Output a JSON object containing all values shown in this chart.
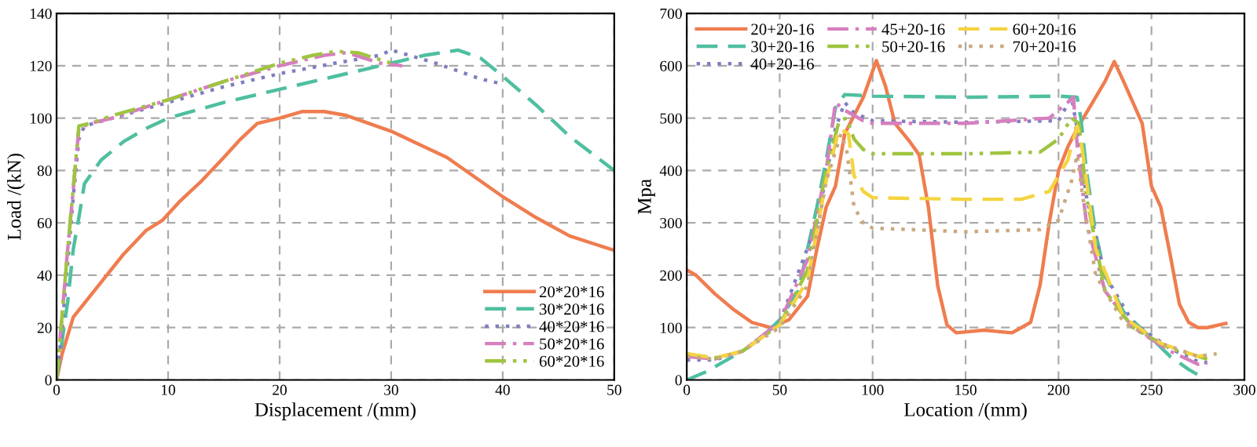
{
  "chart_data": [
    {
      "type": "line",
      "xlabel": "Displacement /(mm)",
      "ylabel": "Load /(kN)",
      "xlim": [
        0,
        50
      ],
      "ylim": [
        0,
        140
      ],
      "xticks": [
        0,
        10,
        20,
        30,
        40,
        50
      ],
      "yticks": [
        0,
        20,
        40,
        60,
        80,
        100,
        120,
        140
      ],
      "grid": true,
      "legend": "lower right",
      "series": [
        {
          "name": "20*20*16",
          "color": "#ef7d4f",
          "line_style": "solid",
          "x": [
            0,
            0.5,
            1.5,
            3,
            4.5,
            6,
            8,
            9.5,
            11,
            13,
            15,
            16.5,
            18,
            20,
            22,
            24,
            26,
            28,
            30,
            32,
            35,
            38,
            40,
            43,
            46,
            50
          ],
          "values": [
            0,
            10,
            24,
            32,
            40,
            48,
            57,
            61,
            68,
            76,
            85,
            92,
            98,
            100,
            102.5,
            102.5,
            101,
            98,
            95,
            91,
            85,
            76,
            70,
            62,
            55,
            49.5
          ]
        },
        {
          "name": "30*20*16",
          "color": "#4fbfa0",
          "line_style": "dashed",
          "x": [
            0,
            0.5,
            1,
            1.5,
            2,
            2.5,
            4,
            6,
            8,
            10,
            15,
            20,
            25,
            30,
            33,
            36,
            38,
            40,
            43,
            46,
            50
          ],
          "values": [
            0,
            15,
            30,
            50,
            62,
            75,
            84,
            91,
            96,
            100,
            106,
            111,
            116,
            121,
            124,
            126,
            123,
            116,
            105,
            93,
            80
          ]
        },
        {
          "name": "40*20*16",
          "color": "#7f7fbf",
          "line_style": "dotted",
          "x": [
            0,
            0.5,
            1,
            1.5,
            2,
            2.5,
            5,
            10,
            15,
            20,
            25,
            29,
            30,
            34,
            38,
            40
          ],
          "values": [
            0,
            20,
            45,
            70,
            92,
            97,
            100,
            106,
            112,
            117,
            121,
            124,
            126,
            121,
            115,
            113
          ]
        },
        {
          "name": "50*20*16",
          "color": "#d77fbf",
          "line_style": "dashdot",
          "x": [
            0,
            1,
            2,
            3,
            5,
            10,
            15,
            20,
            24,
            26,
            29,
            31
          ],
          "values": [
            0,
            50,
            96,
            98,
            100,
            107,
            114,
            120,
            124,
            125,
            121,
            120
          ]
        },
        {
          "name": "60*20*16",
          "color": "#9fc43f",
          "line_style": "dashdotdot",
          "x": [
            0,
            1,
            2,
            3,
            5,
            10,
            15,
            20,
            23,
            25,
            27,
            30
          ],
          "values": [
            0,
            50,
            97,
            98,
            101,
            107,
            114,
            121,
            124,
            125.5,
            125,
            121
          ]
        }
      ]
    },
    {
      "type": "line",
      "xlabel": "Location /(mm)",
      "ylabel": "Mpa",
      "xlim": [
        0,
        300
      ],
      "ylim": [
        0,
        700
      ],
      "xticks": [
        0,
        50,
        100,
        150,
        200,
        250,
        300
      ],
      "yticks": [
        0,
        100,
        200,
        300,
        400,
        500,
        600,
        700
      ],
      "grid": true,
      "legend": "top left",
      "series": [
        {
          "name": "20+20-16",
          "color": "#ef7d4f",
          "line_style": "solid",
          "x": [
            0,
            5,
            15,
            25,
            35,
            45,
            55,
            65,
            70,
            75,
            80,
            85,
            90,
            95,
            102,
            107,
            112,
            120,
            125,
            130,
            135,
            140,
            145,
            160,
            175,
            180,
            185,
            190,
            195,
            200,
            205,
            210,
            215,
            220,
            225,
            230,
            235,
            240,
            245,
            250,
            255,
            260,
            265,
            270,
            275,
            280,
            290
          ],
          "values": [
            210,
            200,
            165,
            135,
            110,
            100,
            115,
            160,
            250,
            330,
            370,
            470,
            505,
            540,
            610,
            560,
            490,
            455,
            430,
            330,
            180,
            105,
            90,
            95,
            90,
            100,
            110,
            180,
            300,
            400,
            445,
            480,
            510,
            540,
            570,
            608,
            570,
            530,
            490,
            370,
            330,
            240,
            145,
            110,
            100,
            100,
            108
          ]
        },
        {
          "name": "30+20-16",
          "color": "#4fbfa0",
          "line_style": "dashed",
          "x": [
            0,
            10,
            20,
            30,
            40,
            50,
            60,
            65,
            70,
            75,
            80,
            85,
            100,
            150,
            200,
            210,
            212,
            215,
            220,
            225,
            235,
            250,
            260,
            270,
            275
          ],
          "values": [
            0,
            15,
            35,
            55,
            80,
            115,
            170,
            250,
            330,
            420,
            520,
            545,
            542,
            540,
            542,
            540,
            500,
            400,
            280,
            200,
            130,
            80,
            45,
            20,
            10
          ]
        },
        {
          "name": "40+20-16",
          "color": "#7f7fbf",
          "line_style": "dotted",
          "x": [
            0,
            15,
            30,
            50,
            70,
            80,
            85,
            90,
            100,
            150,
            200,
            207,
            210,
            215,
            225,
            240,
            260,
            275,
            280
          ],
          "values": [
            38,
            38,
            55,
            110,
            300,
            480,
            530,
            510,
            495,
            492,
            495,
            540,
            480,
            350,
            200,
            110,
            60,
            35,
            33
          ]
        },
        {
          "name": "45+20-16",
          "color": "#d77fbf",
          "line_style": "dashdot",
          "x": [
            0,
            15,
            30,
            50,
            65,
            75,
            80,
            85,
            95,
            100,
            150,
            195,
            205,
            208,
            210,
            215,
            225,
            240,
            260,
            275,
            280
          ],
          "values": [
            45,
            40,
            55,
            110,
            230,
            400,
            530,
            515,
            495,
            490,
            490,
            500,
            530,
            540,
            450,
            300,
            170,
            100,
            55,
            30,
            32
          ]
        },
        {
          "name": "50+20-16",
          "color": "#9fc43f",
          "line_style": "dashdotdot",
          "x": [
            0,
            15,
            30,
            50,
            65,
            75,
            82,
            86,
            90,
            95,
            100,
            150,
            190,
            200,
            207,
            211,
            215,
            225,
            240,
            260,
            280
          ],
          "values": [
            50,
            42,
            55,
            105,
            210,
            400,
            495,
            500,
            460,
            440,
            432,
            432,
            435,
            460,
            500,
            490,
            350,
            170,
            100,
            60,
            40
          ]
        },
        {
          "name": "60+20-16",
          "color": "#f5d440",
          "line_style": "dashed",
          "x": [
            0,
            15,
            30,
            50,
            65,
            75,
            82,
            87,
            90,
            95,
            100,
            150,
            180,
            195,
            205,
            210,
            212,
            220,
            235,
            255,
            275,
            285
          ],
          "values": [
            50,
            42,
            55,
            105,
            190,
            380,
            480,
            470,
            390,
            360,
            348,
            345,
            345,
            360,
            420,
            485,
            460,
            250,
            120,
            70,
            45,
            50
          ]
        },
        {
          "name": "70+20-16",
          "color": "#c8aa80",
          "line_style": "dotted",
          "x": [
            0,
            15,
            30,
            50,
            65,
            75,
            83,
            86,
            90,
            95,
            100,
            150,
            190,
            200,
            207,
            210,
            213,
            220,
            235,
            255,
            275,
            285
          ],
          "values": [
            45,
            40,
            55,
            100,
            180,
            380,
            470,
            440,
            330,
            300,
            290,
            283,
            287,
            305,
            380,
            430,
            350,
            200,
            110,
            70,
            45,
            50
          ]
        }
      ]
    }
  ]
}
